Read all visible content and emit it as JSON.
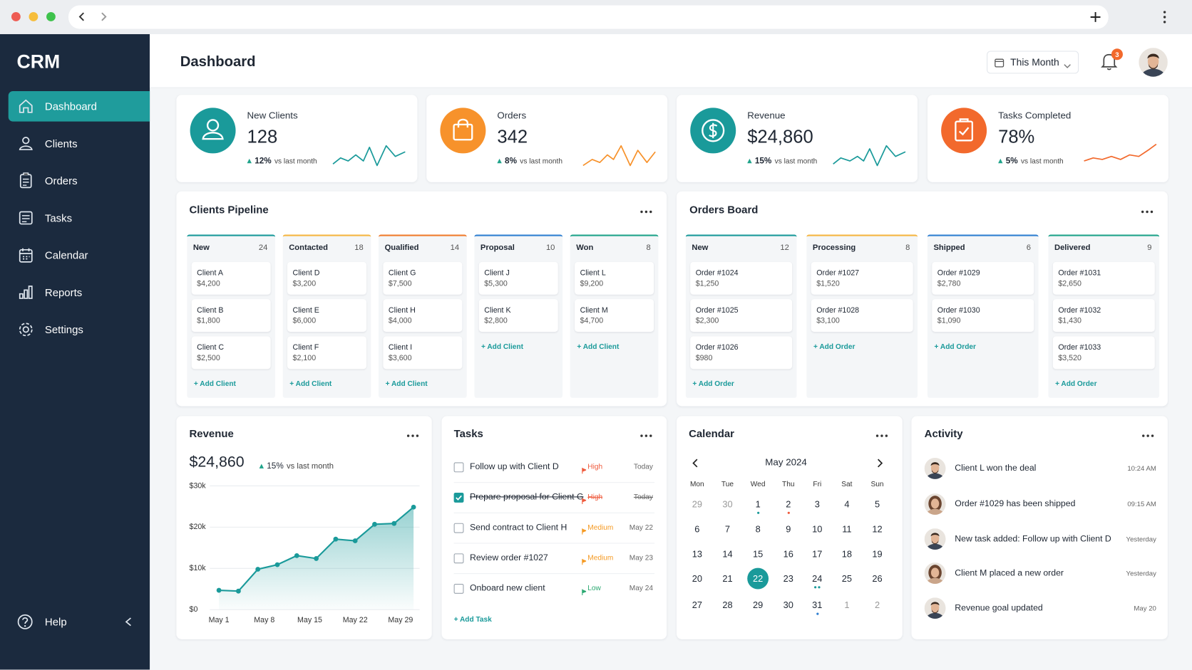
{
  "sidebar": {
    "brand": "CRM",
    "nav": [
      "Dashboard",
      "Clients",
      "Orders",
      "Tasks",
      "Calendar",
      "Reports",
      "Settings"
    ],
    "active": 0,
    "help": "Help"
  },
  "header": {
    "title": "Dashboard",
    "period": "This Month",
    "notifications": "3"
  },
  "stats": [
    {
      "label": "New Clients",
      "value": "128",
      "change": "12%",
      "note": "vs last month",
      "color": "#1a9a9a"
    },
    {
      "label": "Orders",
      "value": "342",
      "change": "8%",
      "note": "vs last month",
      "color": "#f7922b"
    },
    {
      "label": "Revenue",
      "value": "$24,860",
      "change": "15%",
      "note": "vs last month",
      "color": "#1a9a9a"
    },
    {
      "label": "Tasks Completed",
      "value": "78%",
      "change": "5%",
      "note": "vs last month",
      "color": "#f2692c"
    }
  ],
  "pipeline": {
    "title": "Clients Pipeline",
    "add": "+ Add Client",
    "columns": [
      {
        "name": "New",
        "count": "24",
        "color": "#1a9a9a",
        "cards": [
          {
            "name": "Client A",
            "amount": "$4,200"
          },
          {
            "name": "Client B",
            "amount": "$1,800"
          },
          {
            "name": "Client C",
            "amount": "$2,500"
          }
        ]
      },
      {
        "name": "Contacted",
        "count": "18",
        "color": "#f5b642",
        "cards": [
          {
            "name": "Client D",
            "amount": "$3,200"
          },
          {
            "name": "Client E",
            "amount": "$6,000"
          },
          {
            "name": "Client F",
            "amount": "$2,100"
          }
        ]
      },
      {
        "name": "Qualified",
        "count": "14",
        "color": "#f07c2e",
        "cards": [
          {
            "name": "Client G",
            "amount": "$7,500"
          },
          {
            "name": "Client H",
            "amount": "$4,000"
          },
          {
            "name": "Client I",
            "amount": "$3,600"
          }
        ]
      },
      {
        "name": "Proposal",
        "count": "10",
        "color": "#2f7fd1",
        "cards": [
          {
            "name": "Client J",
            "amount": "$5,300"
          },
          {
            "name": "Client K",
            "amount": "$2,800"
          }
        ]
      },
      {
        "name": "Won",
        "count": "8",
        "color": "#1fa38a",
        "cards": [
          {
            "name": "Client L",
            "amount": "$9,200"
          },
          {
            "name": "Client M",
            "amount": "$4,700"
          }
        ]
      }
    ]
  },
  "orders_board": {
    "title": "Orders Board",
    "add": "+ Add Order",
    "columns": [
      {
        "name": "New",
        "count": "12",
        "color": "#1a9a9a",
        "cards": [
          {
            "name": "Order #1024",
            "amount": "$1,250"
          },
          {
            "name": "Order #1025",
            "amount": "$2,300"
          },
          {
            "name": "Order #1026",
            "amount": "$980"
          }
        ]
      },
      {
        "name": "Processing",
        "count": "8",
        "color": "#f5b642",
        "cards": [
          {
            "name": "Order #1027",
            "amount": "$1,520"
          },
          {
            "name": "Order #1028",
            "amount": "$3,100"
          }
        ]
      },
      {
        "name": "Shipped",
        "count": "6",
        "color": "#2f7fd1",
        "cards": [
          {
            "name": "Order #1029",
            "amount": "$2,780"
          },
          {
            "name": "Order #1030",
            "amount": "$1,090"
          }
        ]
      },
      {
        "name": "Delivered",
        "count": "9",
        "color": "#1fa38a",
        "cards": [
          {
            "name": "Order #1031",
            "amount": "$2,650"
          },
          {
            "name": "Order #1032",
            "amount": "$1,430"
          },
          {
            "name": "Order #1033",
            "amount": "$3,520"
          }
        ]
      }
    ]
  },
  "revenue": {
    "title": "Revenue",
    "value": "$24,860",
    "change": "15%",
    "note": "vs last month",
    "chart_data": {
      "type": "line",
      "color": "#1a9a9a",
      "x": [
        1,
        4,
        7,
        10,
        13,
        16,
        19,
        22,
        25,
        28,
        31
      ],
      "values": [
        4700,
        4500,
        9800,
        10900,
        13100,
        12400,
        17100,
        16700,
        20700,
        20900,
        24860
      ],
      "xlim": [
        1,
        31
      ],
      "xticks": [
        {
          "value": 1,
          "label": "May 1"
        },
        {
          "value": 8,
          "label": "May 8"
        },
        {
          "value": 15,
          "label": "May 15"
        },
        {
          "value": 22,
          "label": "May 22"
        },
        {
          "value": 29,
          "label": "May 29"
        }
      ],
      "ylim": [
        0,
        30000
      ],
      "yticks": [
        {
          "value": 0,
          "label": "$0"
        },
        {
          "value": 10000,
          "label": "$10k"
        },
        {
          "value": 20000,
          "label": "$20k"
        },
        {
          "value": 30000,
          "label": "$30k"
        }
      ],
      "grid": true
    }
  },
  "tasks": {
    "title": "Tasks",
    "add": "+ Add Task",
    "items": [
      {
        "text": "Follow up with Client D",
        "priority": "High",
        "priority_color": "#ef5a3c",
        "due": "Today",
        "done": false
      },
      {
        "text": "Prepare proposal for Client G",
        "priority": "High",
        "priority_color": "#ef5a3c",
        "due": "Today",
        "done": true
      },
      {
        "text": "Send contract to Client H",
        "priority": "Medium",
        "priority_color": "#f59a23",
        "due": "May 22",
        "done": false
      },
      {
        "text": "Review order #1027",
        "priority": "Medium",
        "priority_color": "#f59a23",
        "due": "May 23",
        "done": false
      },
      {
        "text": "Onboard new client",
        "priority": "Low",
        "priority_color": "#2aa870",
        "due": "May 24",
        "done": false
      }
    ]
  },
  "calendar": {
    "title": "Calendar",
    "month": "May 2024",
    "weekdays": [
      "Mon",
      "Tue",
      "Wed",
      "Thu",
      "Fri",
      "Sat",
      "Sun"
    ],
    "days": [
      {
        "d": "29",
        "other": true
      },
      {
        "d": "30",
        "other": true
      },
      {
        "d": "1",
        "dots": [
          "#1a9a9a"
        ]
      },
      {
        "d": "2",
        "dots": [
          "#ef5a3c"
        ]
      },
      {
        "d": "3"
      },
      {
        "d": "4"
      },
      {
        "d": "5"
      },
      {
        "d": "6"
      },
      {
        "d": "7"
      },
      {
        "d": "8"
      },
      {
        "d": "9"
      },
      {
        "d": "10"
      },
      {
        "d": "11"
      },
      {
        "d": "12"
      },
      {
        "d": "13"
      },
      {
        "d": "14"
      },
      {
        "d": "15"
      },
      {
        "d": "16"
      },
      {
        "d": "17"
      },
      {
        "d": "18"
      },
      {
        "d": "19"
      },
      {
        "d": "20"
      },
      {
        "d": "21"
      },
      {
        "d": "22",
        "selected": true
      },
      {
        "d": "23"
      },
      {
        "d": "24",
        "dots": [
          "#1a9a9a",
          "#1a9a9a"
        ]
      },
      {
        "d": "25"
      },
      {
        "d": "26"
      },
      {
        "d": "27"
      },
      {
        "d": "28"
      },
      {
        "d": "29"
      },
      {
        "d": "30"
      },
      {
        "d": "31",
        "dots": [
          "#2f7fd1"
        ]
      },
      {
        "d": "1",
        "other": true
      },
      {
        "d": "2",
        "other": true
      }
    ]
  },
  "activity": {
    "title": "Activity",
    "items": [
      {
        "text": "Client L won the deal",
        "time": "10:24 AM"
      },
      {
        "text": "Order #1029 has been shipped",
        "time": "09:15 AM"
      },
      {
        "text": "New task added: Follow up with Client D",
        "time": "Yesterday"
      },
      {
        "text": "Client M placed a new order",
        "time": "Yesterday"
      },
      {
        "text": "Revenue goal updated",
        "time": "May 20"
      }
    ]
  }
}
